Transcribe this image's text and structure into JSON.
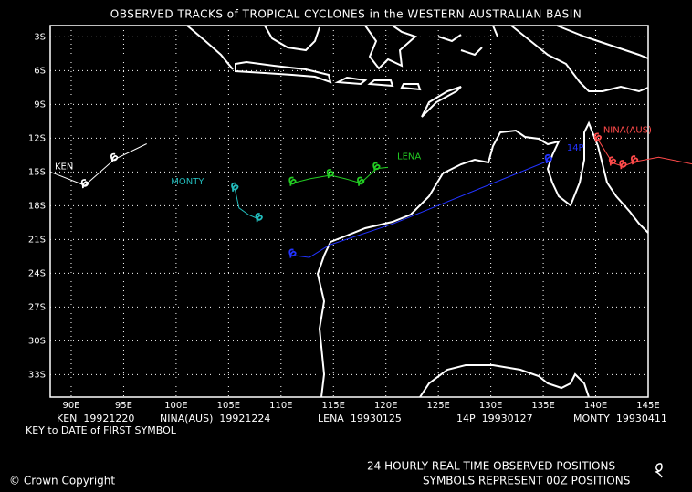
{
  "chart_data": {
    "type": "line",
    "title": "OBSERVED TRACKS of TROPICAL CYCLONES in the WESTERN AUSTRALIAN BASIN",
    "xlim": [
      88,
      145
    ],
    "ylim": [
      -35,
      -2
    ],
    "xticks": [
      {
        "value": 90,
        "label": "90E"
      },
      {
        "value": 95,
        "label": "95E"
      },
      {
        "value": 100,
        "label": "100E"
      },
      {
        "value": 105,
        "label": "105E"
      },
      {
        "value": 110,
        "label": "110E"
      },
      {
        "value": 115,
        "label": "115E"
      },
      {
        "value": 120,
        "label": "120E"
      },
      {
        "value": 125,
        "label": "125E"
      },
      {
        "value": 130,
        "label": "130E"
      },
      {
        "value": 135,
        "label": "135E"
      },
      {
        "value": 140,
        "label": "140E"
      },
      {
        "value": 145,
        "label": "145E"
      }
    ],
    "yticks": [
      {
        "value": -3,
        "label": "3S"
      },
      {
        "value": -6,
        "label": "6S"
      },
      {
        "value": -9,
        "label": "9S"
      },
      {
        "value": -12,
        "label": "12S"
      },
      {
        "value": -15,
        "label": "15S"
      },
      {
        "value": -18,
        "label": "18S"
      },
      {
        "value": -21,
        "label": "21S"
      },
      {
        "value": -24,
        "label": "24S"
      },
      {
        "value": -27,
        "label": "27S"
      },
      {
        "value": -30,
        "label": "30S"
      },
      {
        "value": -33,
        "label": "33S"
      }
    ],
    "grid": true,
    "series": [
      {
        "name": "KEN",
        "first_date": "19921220",
        "color": "#ffffff",
        "x": [
          88,
          91.3,
          94.1,
          97.2
        ],
        "values": [
          -15.0,
          -16.2,
          -13.9,
          -12.5
        ],
        "symbol_x": [
          91.3,
          94.1
        ],
        "symbol_values": [
          -16.2,
          -13.9
        ]
      },
      {
        "name": "NINA(AUS)",
        "first_date": "19921224",
        "color": "#ff4a4a",
        "x": [
          140.2,
          141.6,
          142.6,
          143.7,
          146.0,
          149.2
        ],
        "values": [
          -12.1,
          -14.2,
          -14.5,
          -14.1,
          -13.7,
          -14.3
        ],
        "symbol_x": [
          140.2,
          141.6,
          142.6,
          143.7
        ],
        "symbol_values": [
          -12.1,
          -14.2,
          -14.5,
          -14.1
        ]
      },
      {
        "name": "LENA",
        "first_date": "19930125",
        "color": "#22cc22",
        "x": [
          111.1,
          112.8,
          114.7,
          116.1,
          117.6,
          119.1,
          120.2
        ],
        "values": [
          -16.0,
          -15.6,
          -15.3,
          -15.6,
          -16.0,
          -14.7,
          -14.6
        ],
        "symbol_x": [
          111.1,
          114.7,
          117.6,
          119.1
        ],
        "symbol_values": [
          -16.0,
          -15.3,
          -16.0,
          -14.7
        ]
      },
      {
        "name": "14P",
        "first_date": "19930127",
        "color": "#2233ff",
        "x": [
          111.1,
          112.7,
          114.6,
          120.7,
          135.5
        ],
        "values": [
          -22.4,
          -22.6,
          -21.5,
          -19.6,
          -14.0
        ],
        "symbol_x": [
          111.1,
          135.5
        ],
        "symbol_values": [
          -22.4,
          -14.0
        ]
      },
      {
        "name": "MONTY",
        "first_date": "19930411",
        "color": "#22bbbb",
        "x": [
          105.6,
          106.0,
          106.9,
          107.9
        ],
        "values": [
          -16.5,
          -18.2,
          -18.8,
          -19.2
        ],
        "symbol_x": [
          105.6,
          107.9
        ],
        "symbol_values": [
          -16.5,
          -19.2
        ]
      }
    ],
    "key_title": "KEY to DATE of FIRST SYMBOL",
    "note_1": "24 HOURLY REAL TIME OBSERVED POSITIONS",
    "note_2": "SYMBOLS REPRESENT 00Z POSITIONS",
    "copyright": "© Crown Copyright"
  }
}
